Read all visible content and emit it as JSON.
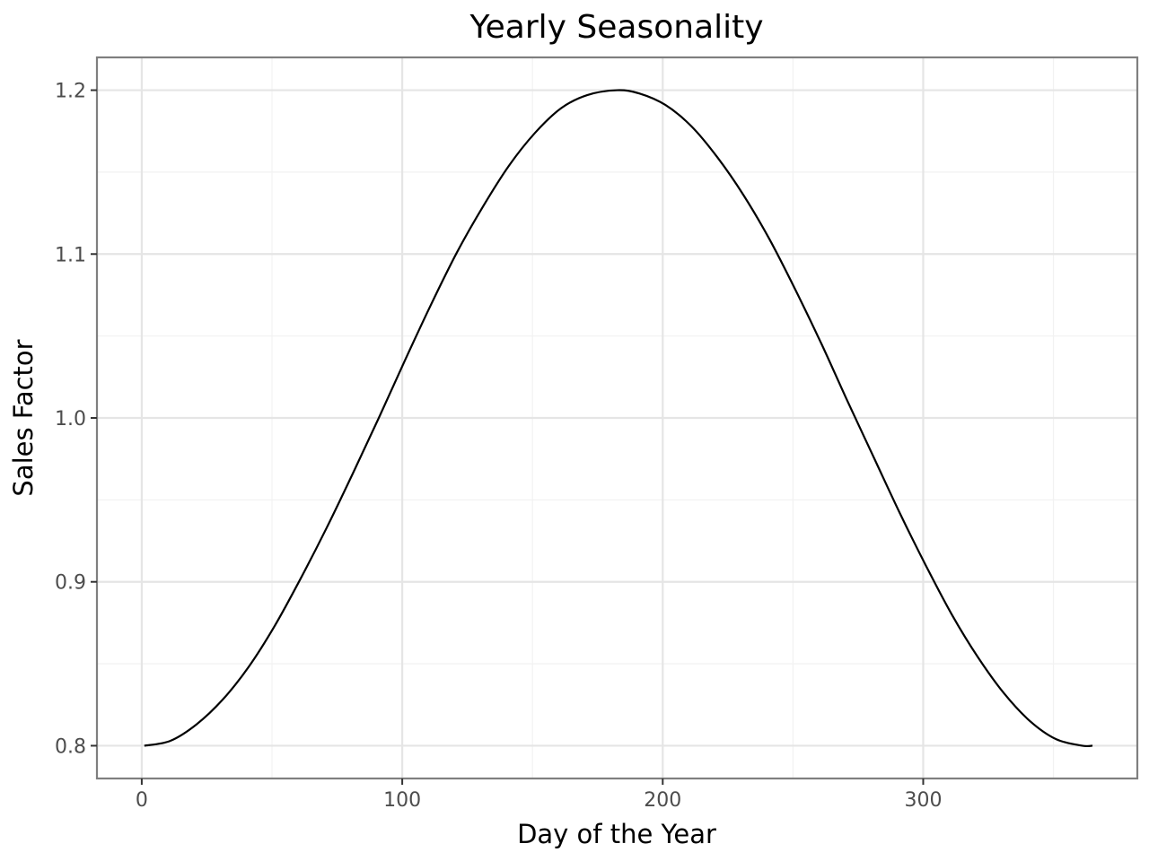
{
  "chart_data": {
    "type": "line",
    "title": "Yearly Seasonality",
    "xlabel": "Day of the Year",
    "ylabel": "Sales Factor",
    "xlim": [
      -17.2,
      382.2
    ],
    "ylim": [
      0.78,
      1.22
    ],
    "x_ticks": [
      0,
      100,
      200,
      300
    ],
    "x_tick_labels": [
      "0",
      "100",
      "200",
      "300"
    ],
    "y_ticks": [
      0.8,
      0.9,
      1.0,
      1.1,
      1.2
    ],
    "y_tick_labels": [
      "0.8",
      "0.9",
      "1.0",
      "1.1",
      "1.2"
    ],
    "grid": true,
    "legend": "none",
    "series": [
      {
        "color": "#000000",
        "x": [
          1,
          11,
          21,
          31,
          41,
          51,
          61,
          71,
          81,
          91,
          101,
          111,
          121,
          131,
          141,
          151,
          161,
          171,
          182.5,
          191,
          201,
          211,
          221,
          231,
          241,
          251,
          261,
          271,
          281,
          291,
          301,
          311,
          321,
          331,
          341,
          351,
          361,
          365
        ],
        "y": [
          0.8,
          0.803,
          0.813,
          0.828,
          0.848,
          0.873,
          0.902,
          0.933,
          0.966,
          1.0,
          1.035,
          1.069,
          1.101,
          1.129,
          1.154,
          1.174,
          1.189,
          1.197,
          1.2,
          1.198,
          1.191,
          1.178,
          1.159,
          1.136,
          1.109,
          1.078,
          1.045,
          1.01,
          0.976,
          0.942,
          0.91,
          0.88,
          0.854,
          0.832,
          0.815,
          0.804,
          0.8,
          0.8
        ]
      }
    ]
  }
}
